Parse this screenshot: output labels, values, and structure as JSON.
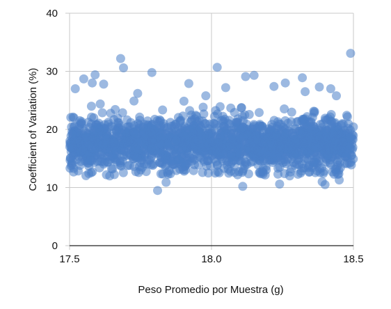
{
  "chart_data": {
    "type": "scatter",
    "xlabel": "Peso Promedio por Muestra (g)",
    "ylabel": "Coefficient of Variation (%)",
    "xlim": [
      17.5,
      18.5
    ],
    "ylim": [
      0,
      40
    ],
    "x_ticks": [
      "17.5",
      "18.0",
      "18.5"
    ],
    "y_ticks": [
      "0",
      "10",
      "20",
      "30",
      "40"
    ],
    "grid": true,
    "legend": "none",
    "point_color": "#4a7fc8",
    "point_count": 1800,
    "bulk_range_y": [
      12,
      22
    ],
    "approx_mean_y": 17.5,
    "outliers": [
      {
        "x": 17.68,
        "y": 32.2
      },
      {
        "x": 17.69,
        "y": 30.6
      },
      {
        "x": 17.55,
        "y": 28.7
      },
      {
        "x": 17.58,
        "y": 28.0
      },
      {
        "x": 17.59,
        "y": 29.4
      },
      {
        "x": 17.62,
        "y": 27.8
      },
      {
        "x": 17.79,
        "y": 29.8
      },
      {
        "x": 17.74,
        "y": 26.2
      },
      {
        "x": 17.52,
        "y": 27.0
      },
      {
        "x": 17.92,
        "y": 27.9
      },
      {
        "x": 17.98,
        "y": 25.8
      },
      {
        "x": 18.02,
        "y": 30.7
      },
      {
        "x": 18.05,
        "y": 27.2
      },
      {
        "x": 18.12,
        "y": 29.1
      },
      {
        "x": 18.15,
        "y": 29.3
      },
      {
        "x": 18.22,
        "y": 27.4
      },
      {
        "x": 18.26,
        "y": 28.0
      },
      {
        "x": 18.32,
        "y": 28.9
      },
      {
        "x": 18.33,
        "y": 26.5
      },
      {
        "x": 18.38,
        "y": 27.3
      },
      {
        "x": 18.42,
        "y": 27.0
      },
      {
        "x": 18.44,
        "y": 25.8
      },
      {
        "x": 18.49,
        "y": 33.1
      },
      {
        "x": 17.81,
        "y": 9.5
      },
      {
        "x": 17.84,
        "y": 10.9
      },
      {
        "x": 18.11,
        "y": 10.2
      },
      {
        "x": 18.24,
        "y": 10.6
      },
      {
        "x": 18.39,
        "y": 11.0
      },
      {
        "x": 18.4,
        "y": 10.5
      },
      {
        "x": 17.63,
        "y": 12.2
      },
      {
        "x": 18.45,
        "y": 11.3
      }
    ]
  }
}
